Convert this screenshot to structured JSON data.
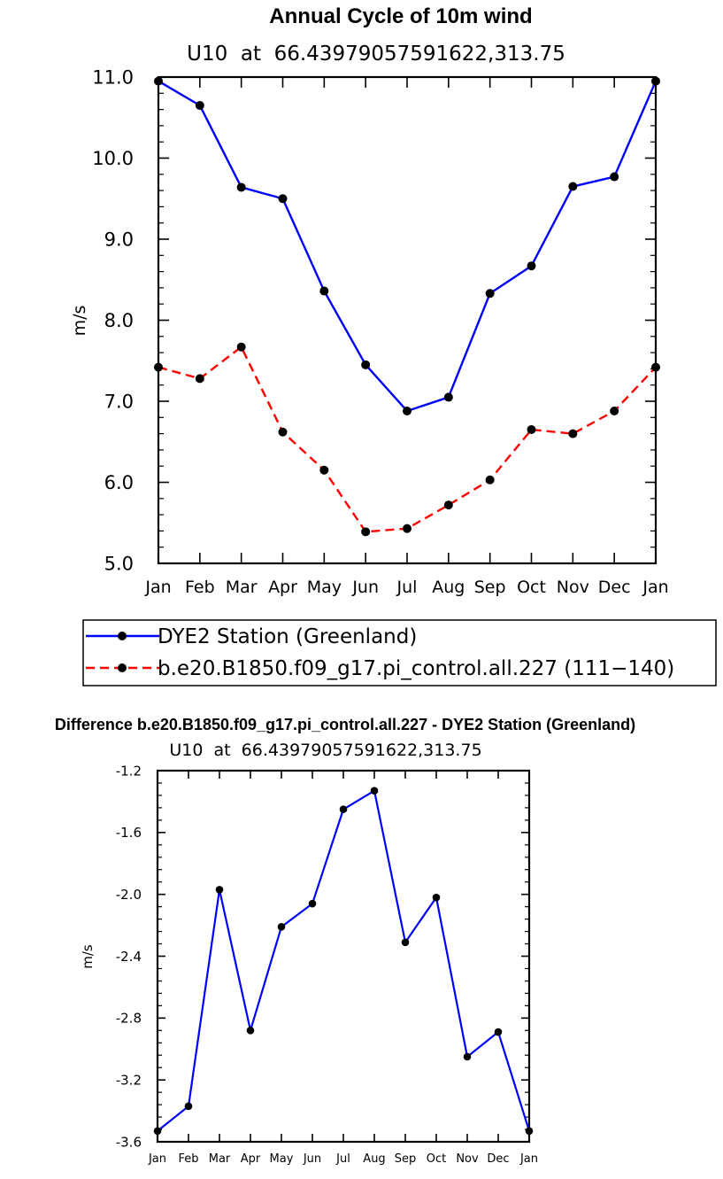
{
  "chart_data": [
    {
      "type": "line",
      "title": "Annual Cycle of 10m wind",
      "subtitle": "U10  at  66.43979057591622,313.75",
      "xlabel": "",
      "ylabel": "m/s",
      "categories": [
        "Jan",
        "Feb",
        "Mar",
        "Apr",
        "May",
        "Jun",
        "Jul",
        "Aug",
        "Sep",
        "Oct",
        "Nov",
        "Dec",
        "Jan"
      ],
      "ylim": [
        5.0,
        11.0
      ],
      "yticks": [
        "5.0",
        "6.0",
        "7.0",
        "8.0",
        "9.0",
        "10.0",
        "11.0"
      ],
      "legend_position": "bottom",
      "series": [
        {
          "name": "DYE2 Station (Greenland)",
          "color": "#0000ff",
          "dash": "solid",
          "values": [
            10.95,
            10.65,
            9.64,
            9.5,
            8.36,
            7.45,
            6.88,
            7.05,
            8.33,
            8.67,
            9.65,
            9.77,
            10.95
          ]
        },
        {
          "name": "b.e20.B1850.f09_g17.pi_control.all.227 (111−140)",
          "color": "#ff0000",
          "dash": "dashed",
          "values": [
            7.42,
            7.28,
            7.67,
            6.62,
            6.15,
            5.39,
            5.43,
            5.72,
            6.03,
            6.65,
            6.6,
            6.88,
            7.42
          ]
        }
      ]
    },
    {
      "type": "line",
      "title": "Difference b.e20.B1850.f09_g17.pi_control.all.227 - DYE2 Station (Greenland)",
      "subtitle": "U10  at  66.43979057591622,313.75",
      "xlabel": "",
      "ylabel": "m/s",
      "categories": [
        "Jan",
        "Feb",
        "Mar",
        "Apr",
        "May",
        "Jun",
        "Jul",
        "Aug",
        "Sep",
        "Oct",
        "Nov",
        "Dec",
        "Jan"
      ],
      "ylim": [
        -3.6,
        -1.2
      ],
      "yticks": [
        "-3.6",
        "-3.2",
        "-2.8",
        "-2.4",
        "-2.0",
        "-1.6",
        "-1.2"
      ],
      "series": [
        {
          "color": "#0000ff",
          "dash": "solid",
          "values": [
            -3.53,
            -3.37,
            -1.97,
            -2.88,
            -2.21,
            -2.06,
            -1.45,
            -1.33,
            -2.31,
            -2.02,
            -3.05,
            -2.89,
            -3.53
          ]
        }
      ]
    }
  ]
}
